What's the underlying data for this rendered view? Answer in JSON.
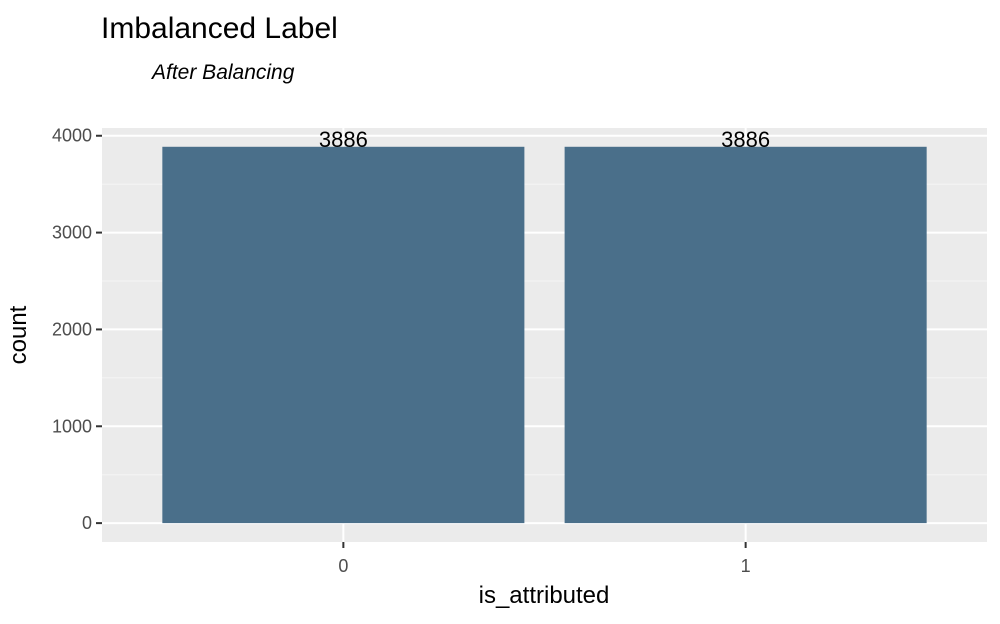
{
  "chart_data": {
    "type": "bar",
    "title": "Imbalanced Label",
    "subtitle": "After Balancing",
    "xlabel": "is_attributed",
    "ylabel": "count",
    "categories": [
      "0",
      "1"
    ],
    "values": [
      3886,
      3886
    ],
    "data_labels": [
      "3886",
      "3886"
    ],
    "yticks": [
      0,
      1000,
      2000,
      3000,
      4000
    ],
    "ytick_labels": [
      "0",
      "1000",
      "2000",
      "3000",
      "4000"
    ],
    "ylim": [
      -195,
      4080
    ],
    "grid": true,
    "legend": "none",
    "colors": {
      "bar": "#4a6f8a",
      "panel": "#ebebeb",
      "grid_major": "#ffffff",
      "grid_minor": "#f5f5f5"
    }
  }
}
